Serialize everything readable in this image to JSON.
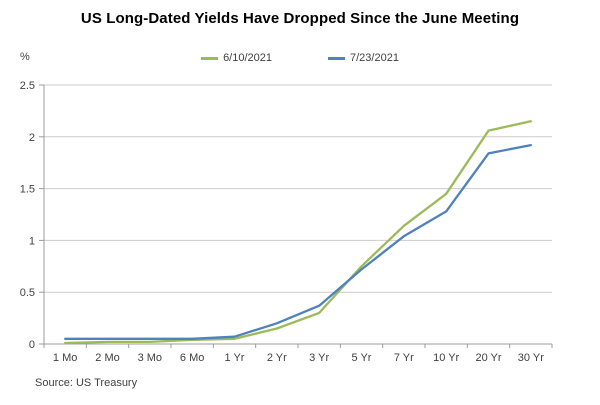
{
  "title": "US Long-Dated Yields Have Dropped Since the June Meeting",
  "source": "Source: US Treasury",
  "colors": {
    "series_green": "#9BBB59",
    "series_blue": "#4F81BD",
    "grid": "#CCCCCC",
    "axis": "#9B9B9B",
    "tick_text": "#404040",
    "title_text": "#000000"
  },
  "legend": {
    "items": [
      {
        "label": "6/10/2021",
        "color": "#9BBB59"
      },
      {
        "label": "7/23/2021",
        "color": "#4F81BD"
      }
    ]
  },
  "chart_data": {
    "type": "line",
    "title": "US Long-Dated Yields Have Dropped Since the June Meeting",
    "xlabel": "",
    "ylabel": "%",
    "categories": [
      "1 Mo",
      "2 Mo",
      "3 Mo",
      "6 Mo",
      "1 Yr",
      "2 Yr",
      "3 Yr",
      "5 Yr",
      "7 Yr",
      "10 Yr",
      "20 Yr",
      "30 Yr"
    ],
    "series": [
      {
        "name": "6/10/2021",
        "color": "#9BBB59",
        "values": [
          0.01,
          0.02,
          0.02,
          0.04,
          0.05,
          0.15,
          0.3,
          0.75,
          1.14,
          1.45,
          2.06,
          2.15
        ]
      },
      {
        "name": "7/23/2021",
        "color": "#4F81BD",
        "values": [
          0.05,
          0.05,
          0.05,
          0.05,
          0.07,
          0.2,
          0.37,
          0.72,
          1.04,
          1.28,
          1.84,
          1.92
        ]
      }
    ],
    "ylim": [
      0,
      2.5
    ],
    "ytick_step": 0.5,
    "ytick_labels": [
      "0",
      "0.5",
      "1",
      "1.5",
      "2",
      "2.5"
    ],
    "grid": true,
    "legend_position": "top"
  }
}
